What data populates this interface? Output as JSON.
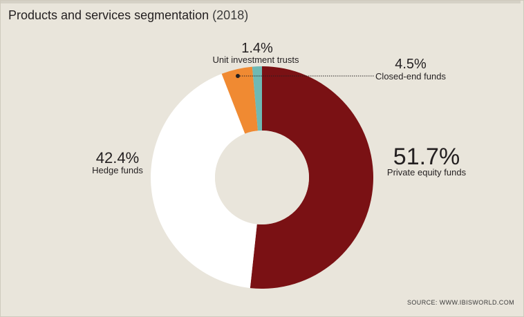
{
  "header": {
    "title": "Products and services segmentation",
    "year": "(2018)"
  },
  "footer": {
    "source": "SOURCE: WWW.IBISWORLD.COM"
  },
  "chart_data": {
    "type": "pie",
    "subtype": "donut",
    "title": "Products and services segmentation (2018)",
    "slices": [
      {
        "label": "Private equity funds",
        "value": 51.7,
        "display": "51.7%",
        "color": "#7a1114"
      },
      {
        "label": "Hedge funds",
        "value": 42.4,
        "display": "42.4%",
        "color": "#ffffff"
      },
      {
        "label": "Closed-end funds",
        "value": 4.5,
        "display": "4.5%",
        "color": "#f08a32"
      },
      {
        "label": "Unit investment trusts",
        "value": 1.4,
        "display": "1.4%",
        "color": "#6fb9b4"
      }
    ],
    "start_angle_deg": 0,
    "direction": "clockwise",
    "legend": "none",
    "colors": {
      "background": "#e9e5db",
      "text": "#231f20"
    }
  }
}
